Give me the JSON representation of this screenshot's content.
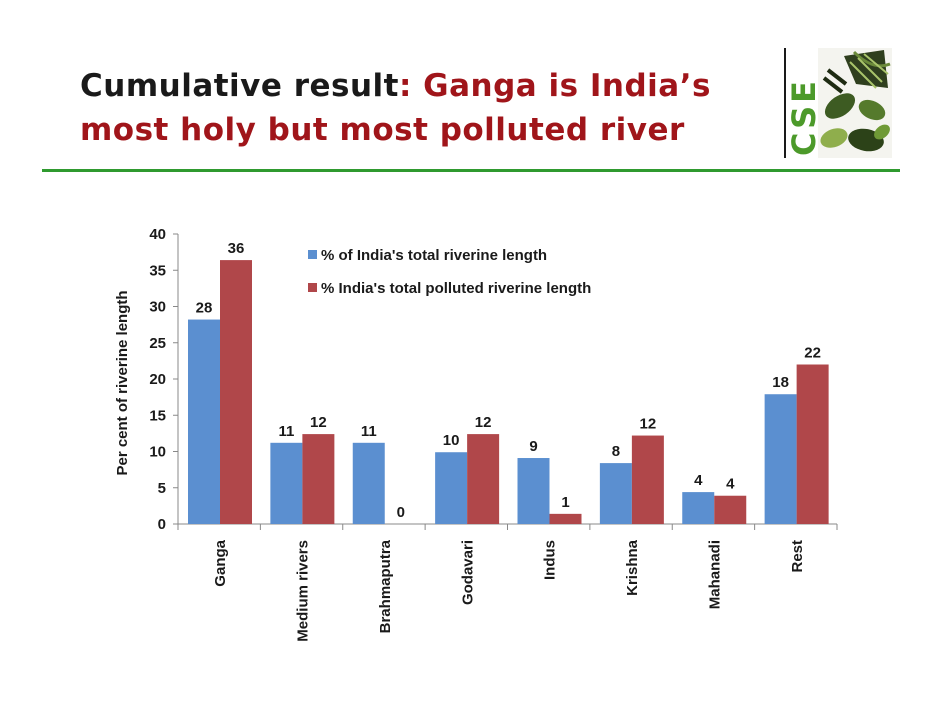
{
  "slide": {
    "title_part1": "Cumulative result",
    "title_part2": ": Ganga is India’s",
    "title_line2": "most holy but most polluted river",
    "logo_text": "CSE",
    "colors": {
      "title_dark": "#1a1a1a",
      "title_red": "#a0151a",
      "rule_green": "#2f9a2f"
    }
  },
  "chart_data": {
    "type": "bar",
    "title": "",
    "xlabel": "",
    "ylabel": "Per cent of riverine length",
    "ylim": [
      0,
      40
    ],
    "yticks": [
      0,
      5,
      10,
      15,
      20,
      25,
      30,
      35,
      40
    ],
    "categories": [
      "Ganga",
      "Medium rivers",
      "Brahmaputra",
      "Godavari",
      "Indus",
      "Krishna",
      "Mahanadi",
      "Rest"
    ],
    "series": [
      {
        "name": "% of India's total riverine length",
        "color": "#5b8fd0",
        "values": [
          28.2,
          11.2,
          11.2,
          9.9,
          9.1,
          8.4,
          4.4,
          17.9
        ],
        "labels": [
          "28",
          "11",
          "11",
          "10",
          "9",
          "8",
          "4",
          "18"
        ]
      },
      {
        "name": "% India's total polluted riverine length",
        "color": "#b0474a",
        "values": [
          36.4,
          12.4,
          0,
          12.4,
          1.4,
          12.2,
          3.9,
          22.0
        ],
        "labels": [
          "36",
          "12",
          "0",
          "12",
          "1",
          "12",
          "4",
          "22"
        ]
      }
    ],
    "legend_position": "top-center",
    "grid": false
  }
}
